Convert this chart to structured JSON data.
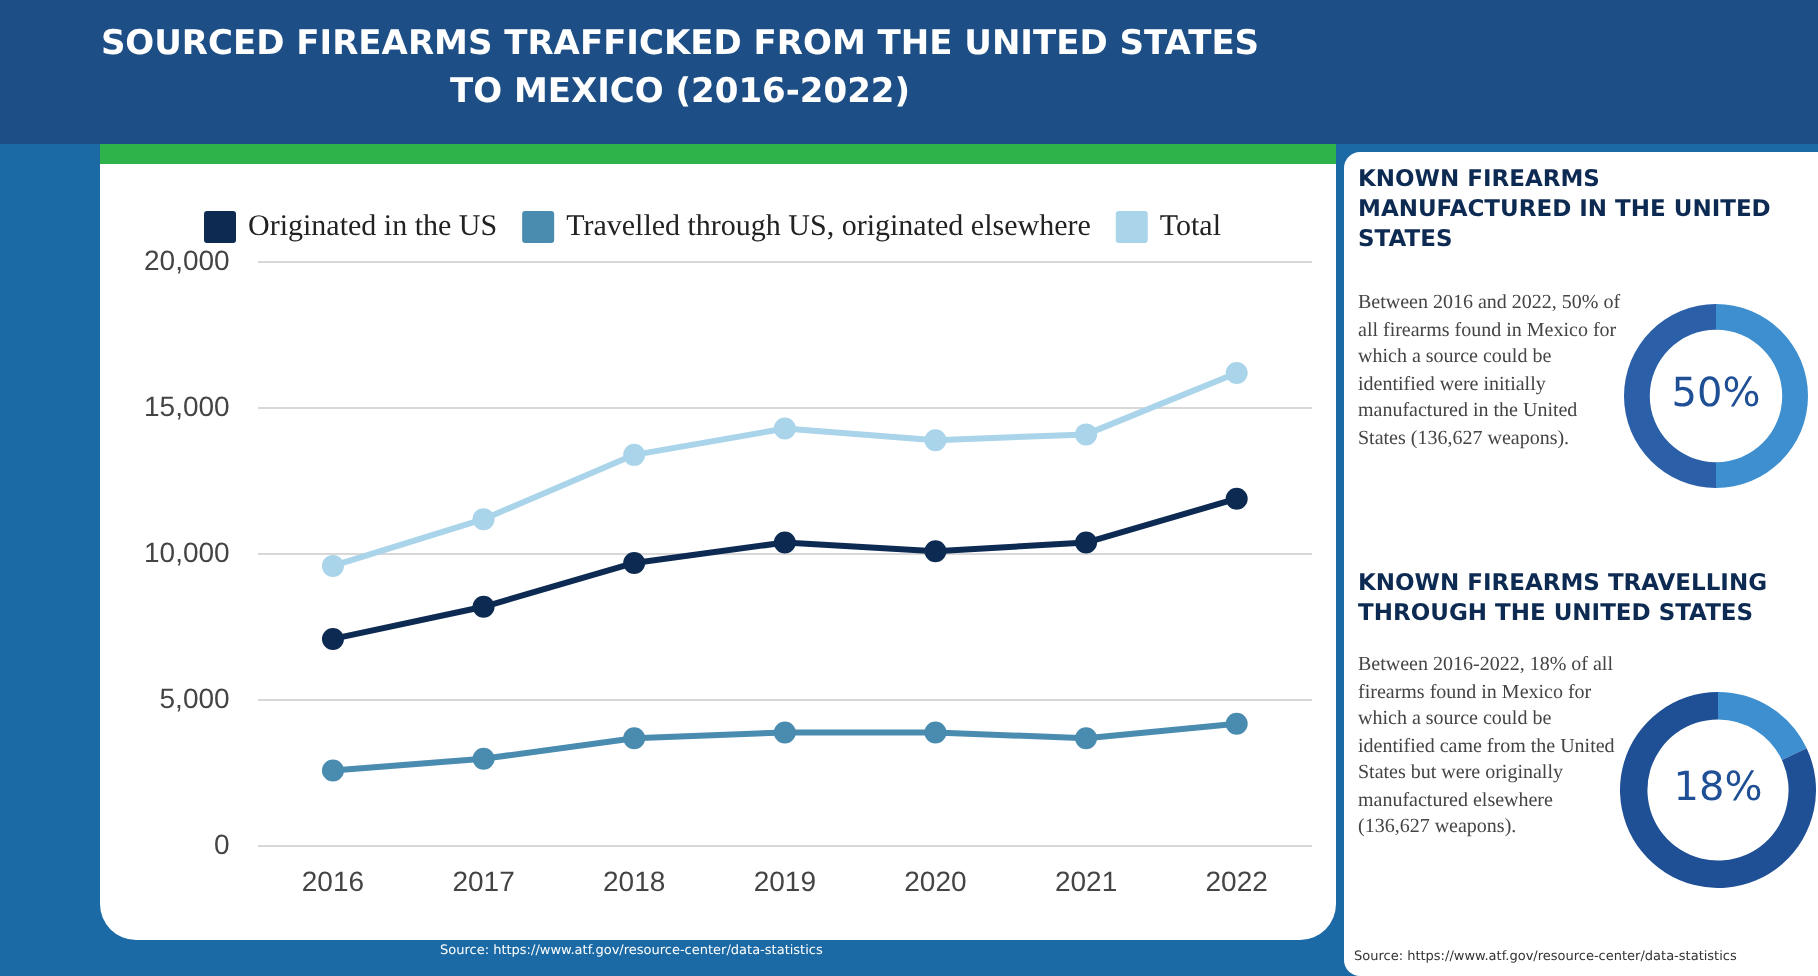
{
  "chart_data": [
    {
      "type": "line",
      "title": "SOURCED FIREARMS TRAFFICKED FROM THE UNITED STATES TO MEXICO (2016-2022)",
      "categories": [
        "2016",
        "2017",
        "2018",
        "2019",
        "2020",
        "2021",
        "2022"
      ],
      "series": [
        {
          "name": "Originated in the US",
          "color": "#0d2a52",
          "values": [
            7100,
            8200,
            9700,
            10400,
            10100,
            10400,
            11900
          ]
        },
        {
          "name": "Travelled through US, originated elsewhere",
          "color": "#4a8bb0",
          "values": [
            2600,
            3000,
            3700,
            3900,
            3900,
            3700,
            4200
          ]
        },
        {
          "name": "Total",
          "color": "#a9d4ea",
          "values": [
            9600,
            11200,
            13400,
            14300,
            13900,
            14100,
            16200
          ]
        }
      ],
      "ylim": [
        0,
        20000
      ],
      "yticks": [
        0,
        {
          "value": 5000,
          "label": "5,000"
        },
        {
          "value": 10000,
          "label": "10,000"
        },
        {
          "value": 15000,
          "label": "15,000"
        },
        {
          "value": 20000,
          "label": "20,000"
        }
      ],
      "grid": "y",
      "legend": "top",
      "marker": "circle",
      "line_style": "solid",
      "annotations": [
        "Source: https://www.atf.gov/resource-center/data-statistics"
      ]
    },
    {
      "type": "donut",
      "title": "KNOWN FIREARMS MANUFACTURED IN THE UNITED STATES",
      "categories": [
        null,
        null
      ],
      "values": [
        50,
        50
      ],
      "colors": [
        "#3d8fcf",
        "#2b5fa8"
      ],
      "value_labels": [
        "50%",
        null
      ],
      "annotations": [
        "Between 2016 and 2022, 50% of all firearms found in Mexico for which a source could be identified were initially manufactured in the United States (136,627 weapons)."
      ]
    },
    {
      "type": "donut",
      "title": "KNOWN FIREARMS TRAVELLING THROUGH THE UNITED STATES",
      "categories": [
        null,
        null
      ],
      "values": [
        18,
        82
      ],
      "colors": [
        "#3d8fcf",
        "#1f4f95"
      ],
      "value_labels": [
        "18%",
        null
      ],
      "annotations": [
        "Between 2016-2022, 18% of all firearms found in Mexico for which a source could be identified came from the United States but were originally manufactured elsewhere (136,627 weapons).",
        "Source: https://www.atf.gov/resource-center/data-statistics"
      ]
    }
  ]
}
